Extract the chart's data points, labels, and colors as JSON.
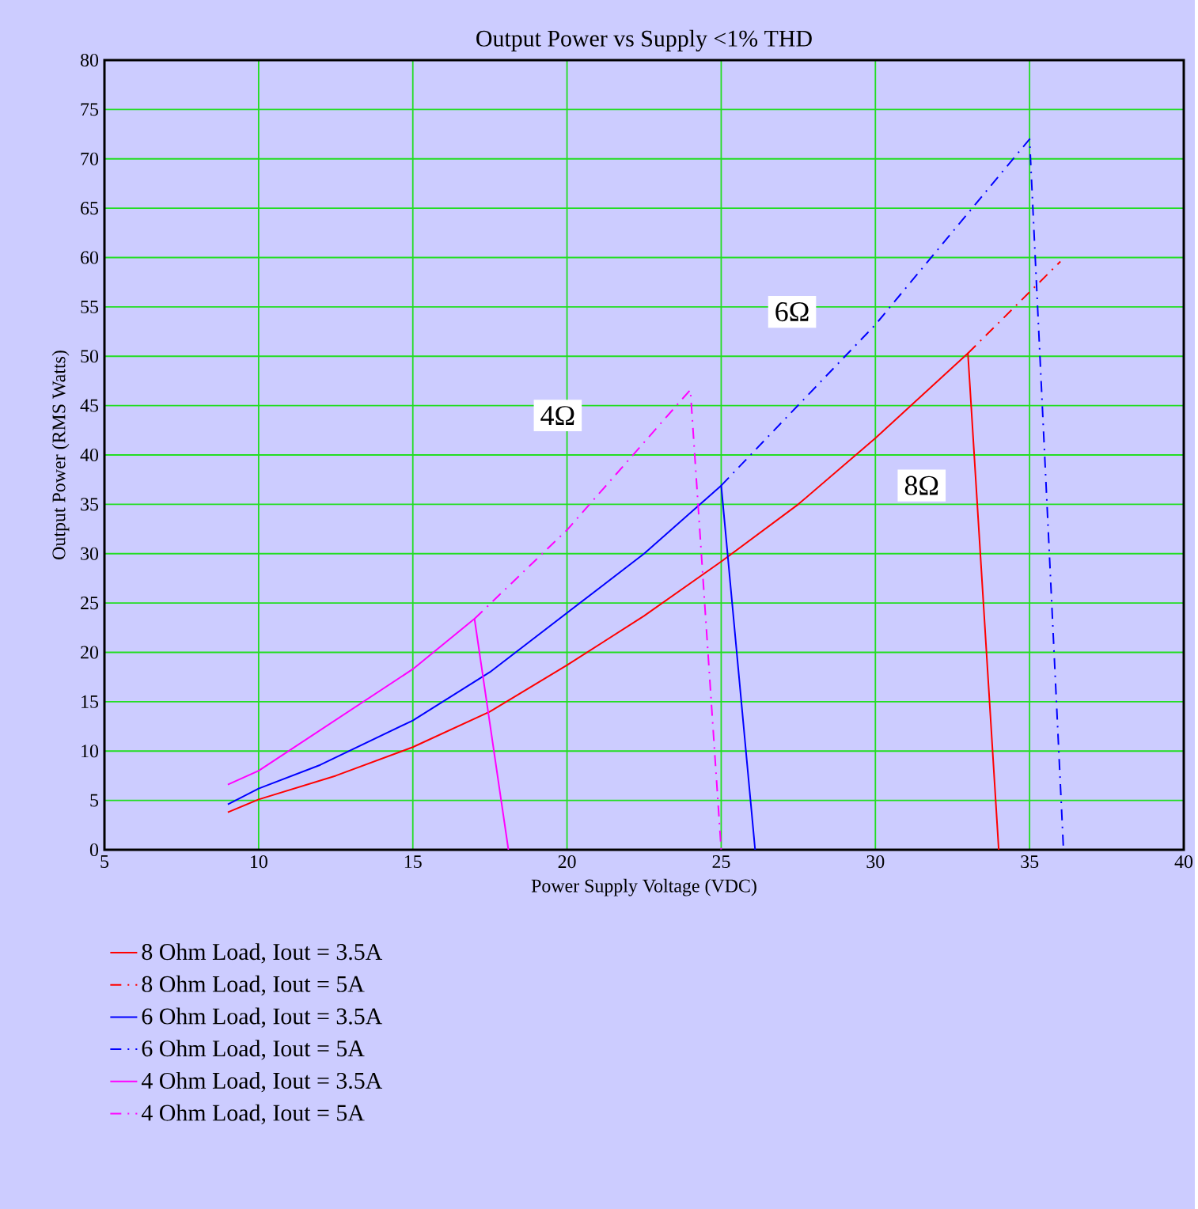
{
  "chart_data": {
    "type": "line",
    "title": "Output Power vs Supply <1% THD",
    "xlabel": "Power Supply Voltage (VDC)",
    "ylabel": "Output Power (RMS Watts)",
    "xlim": [
      5,
      40
    ],
    "xticks": [
      5,
      10,
      15,
      20,
      25,
      30,
      35,
      40
    ],
    "ylim": [
      0,
      80
    ],
    "yticks": [
      0,
      5,
      10,
      15,
      20,
      25,
      30,
      35,
      40,
      45,
      50,
      55,
      60,
      65,
      70,
      75,
      80
    ],
    "grid": true,
    "legend": "bottom",
    "marker": "none",
    "series": [
      {
        "name": "8 Ohm Load, Iout = 3.5A",
        "color": "#ff0000",
        "line_style": "solid",
        "x": [
          9,
          10,
          12.5,
          15,
          17.5,
          20,
          22.5,
          25,
          27.5,
          30,
          33,
          34
        ],
        "values": [
          3.8,
          5.1,
          7.5,
          10.4,
          14,
          18.7,
          23.7,
          29.2,
          35,
          41.7,
          50.3,
          0
        ]
      },
      {
        "name": "8 Ohm Load, Iout = 5A",
        "color": "#ff0000",
        "line_style": "dashed",
        "x": [
          33,
          36
        ],
        "values": [
          50.3,
          59.6
        ]
      },
      {
        "name": "6 Ohm Load, Iout = 3.5A",
        "color": "#0000ff",
        "line_style": "solid",
        "x": [
          9,
          10,
          12,
          15,
          17.5,
          20,
          22.5,
          25,
          26.1
        ],
        "values": [
          4.6,
          6.2,
          8.6,
          13.1,
          18,
          24,
          30,
          36.9,
          0
        ]
      },
      {
        "name": "6 Ohm Load, Iout = 5A",
        "color": "#0000ff",
        "line_style": "dashed",
        "x": [
          25,
          30,
          35,
          36.1
        ],
        "values": [
          36.9,
          53.2,
          72,
          0
        ]
      },
      {
        "name": "4 Ohm Load, Iout = 3.5A",
        "color": "#ff00ff",
        "line_style": "solid",
        "x": [
          9,
          10,
          15,
          17,
          18.1
        ],
        "values": [
          6.6,
          8,
          18.3,
          23.4,
          0
        ]
      },
      {
        "name": "4 Ohm Load, Iout = 5A",
        "color": "#ff00ff",
        "line_style": "dashed",
        "x": [
          17,
          20,
          24,
          25
        ],
        "values": [
          23.4,
          32.4,
          46.6,
          0
        ]
      }
    ],
    "annotations": [
      {
        "text": "4Ω",
        "x": 19.7,
        "y": 44
      },
      {
        "text": "6Ω",
        "x": 27.3,
        "y": 54.5
      },
      {
        "text": "8Ω",
        "x": 31.5,
        "y": 36.9
      }
    ]
  }
}
